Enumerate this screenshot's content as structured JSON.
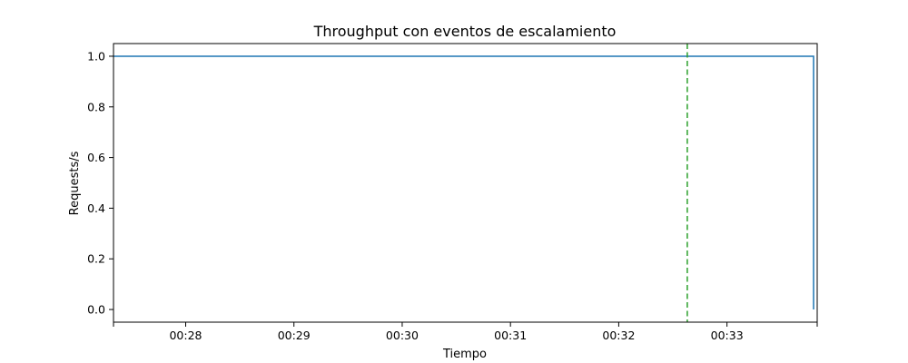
{
  "chart_data": {
    "type": "line",
    "title": "Throughput con eventos de escalamiento",
    "xlabel": "Tiempo",
    "ylabel": "Requests/s",
    "x_unit": "minutes",
    "xlim": [
      "00:27:20",
      "00:33:50"
    ],
    "ylim": [
      -0.05,
      1.05
    ],
    "x_ticks": [
      "00:28",
      "00:29",
      "00:30",
      "00:31",
      "00:32",
      "00:33"
    ],
    "y_ticks": [
      "0.0",
      "0.2",
      "0.4",
      "0.6",
      "0.8",
      "1.0"
    ],
    "series": [
      {
        "color": "#1f77b4",
        "style": "steps",
        "points": [
          {
            "x": "00:27:20",
            "y": 1.0
          },
          {
            "x": "00:33:48",
            "y": 1.0
          },
          {
            "x": "00:33:48",
            "y": 0.0
          }
        ]
      }
    ],
    "events": [
      {
        "x": "00:32:38",
        "color": "#2ca02c",
        "style": "dashed"
      }
    ],
    "grid": false,
    "legend": false
  }
}
